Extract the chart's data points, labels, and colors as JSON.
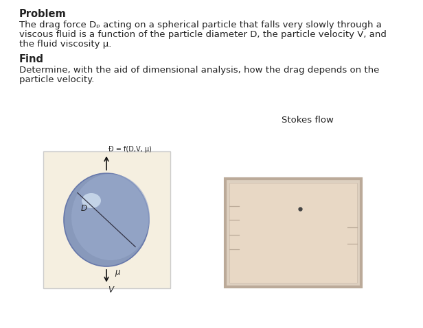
{
  "bg_color": "#ffffff",
  "text_color": "#222222",
  "left_panel_bg": "#f5efe0",
  "left_panel_edge": "#cccccc",
  "sphere_color": "#8899bb",
  "sphere_highlight": "#aabbd0",
  "sphere_edge": "#6677aa",
  "right_panel_outer_bg": "#ddd0c0",
  "right_panel_outer_edge": "#bbaa99",
  "right_panel_inner_bg": "#e8d8c5",
  "right_panel_inner_edge": "#ccbbaa",
  "arrow_color": "#111111",
  "line_color": "#bbaa99",
  "dot_color": "#444444",
  "font_size_body": 9.5,
  "font_size_title": 10.5,
  "font_size_small": 7.0,
  "problem_header": "Problem",
  "problem_line1": "The drag force Dₚ acting on a spherical particle that falls very slowly through a",
  "problem_line2": "viscous fluid is a function of the particle diameter D, the particle velocity V, and",
  "problem_line3": "the fluid viscosity μ.",
  "find_header": "Find",
  "find_line1": "Determine, with the aid of dimensional analysis, how the drag depends on the",
  "find_line2": "particle velocity.",
  "stokes_label": "Stokes flow",
  "drag_label": "Đ = f(D,V, μ)",
  "D_label": "D",
  "mu_label": "μ",
  "V_label": "V"
}
